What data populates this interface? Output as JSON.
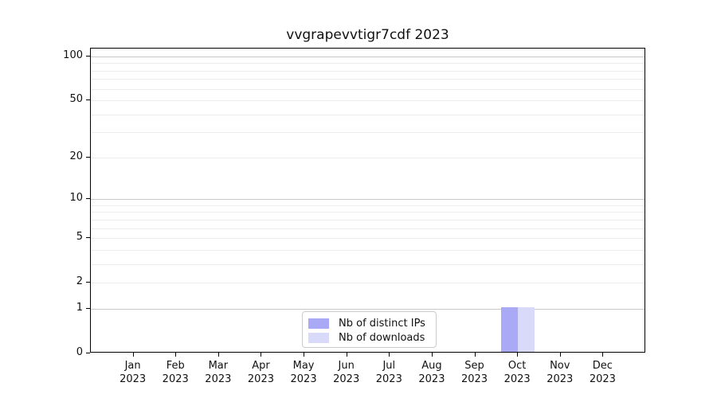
{
  "title": "vvgrapevvtigr7cdf 2023",
  "chart_data": {
    "type": "bar",
    "title": "vvgrapevvtigr7cdf 2023",
    "categories": [
      "Jan 2023",
      "Feb 2023",
      "Mar 2023",
      "Apr 2023",
      "May 2023",
      "Jun 2023",
      "Jul 2023",
      "Aug 2023",
      "Sep 2023",
      "Oct 2023",
      "Nov 2023",
      "Dec 2023"
    ],
    "x_tick_month_labels": [
      "Jan",
      "Feb",
      "Mar",
      "Apr",
      "May",
      "Jun",
      "Jul",
      "Aug",
      "Sep",
      "Oct",
      "Nov",
      "Dec"
    ],
    "x_tick_year_label": "2023",
    "series": [
      {
        "name": "Nb of distinct IPs",
        "color": "#a9a9f5",
        "values": [
          0,
          0,
          0,
          0,
          0,
          0,
          0,
          0,
          0,
          1,
          0,
          0
        ]
      },
      {
        "name": "Nb of downloads",
        "color": "#d9d9f9",
        "values": [
          0,
          0,
          0,
          0,
          0,
          0,
          0,
          0,
          0,
          1,
          0,
          0
        ]
      }
    ],
    "y_axis": {
      "scale": "log1p",
      "max": 100,
      "tick_values": [
        0,
        1,
        2,
        5,
        10,
        20,
        50,
        100
      ],
      "tick_labels": [
        "0",
        "1",
        "2",
        "5",
        "10",
        "20",
        "50",
        "100"
      ],
      "major_grid_values": [
        1,
        10,
        100
      ],
      "minor_grid_values": [
        2,
        3,
        4,
        5,
        6,
        7,
        8,
        9,
        20,
        30,
        40,
        50,
        60,
        70,
        80,
        90
      ]
    },
    "grid": "horizontal",
    "legend_position": "inside-bottom-center"
  },
  "colors": {
    "background": "#ffffff",
    "axis": "#000000",
    "major_grid": "#c9c9c9",
    "minor_grid": "#ededed",
    "legend_border": "#cccccc",
    "bar_distinct_ips": "#a9a9f5",
    "bar_downloads": "#d9d9f9"
  }
}
